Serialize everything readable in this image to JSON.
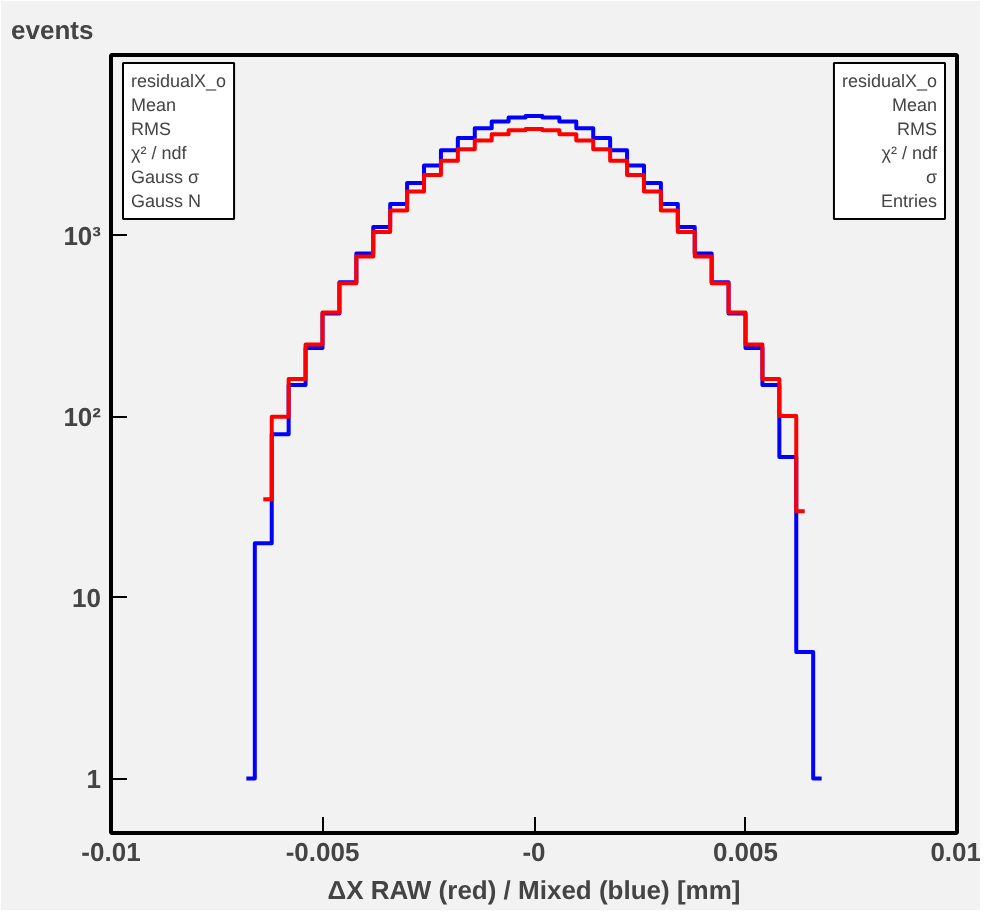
{
  "chart_data": {
    "type": "step",
    "xlabel": "ΔX RAW (red) / Mixed (blue) [mm]",
    "ylabel": "events",
    "x": [
      -0.0068,
      -0.0064,
      -0.006,
      -0.0056,
      -0.0052,
      -0.0048,
      -0.0044,
      -0.004,
      -0.0036,
      -0.0032,
      -0.0028,
      -0.0024,
      -0.002,
      -0.0016,
      -0.0012,
      -0.0008,
      -0.0004,
      0,
      0.0004,
      0.0008,
      0.0012,
      0.0016,
      0.002,
      0.0024,
      0.0028,
      0.0032,
      0.0036,
      0.004,
      0.0044,
      0.0048,
      0.0052,
      0.0056,
      0.006,
      0.0064,
      0.0068
    ],
    "series": [
      {
        "color": "#0000ff",
        "values": [
          1,
          20,
          80,
          150,
          240,
          372,
          555,
          800,
          1120,
          1500,
          1960,
          2450,
          2970,
          3480,
          3930,
          4290,
          4520,
          4600,
          4520,
          4290,
          3930,
          3480,
          2970,
          2450,
          1960,
          1500,
          1120,
          800,
          555,
          372,
          240,
          150,
          60,
          5,
          1
        ]
      },
      {
        "color": "#ff0000",
        "values": [
          null,
          35,
          100,
          162,
          251,
          377,
          548,
          770,
          1050,
          1380,
          1760,
          2170,
          2600,
          3010,
          3370,
          3650,
          3840,
          3900,
          3840,
          3650,
          3370,
          3010,
          2600,
          2170,
          1760,
          1380,
          1050,
          770,
          548,
          377,
          251,
          162,
          101,
          30,
          null
        ]
      }
    ],
    "xlim": [
      -0.01,
      0.01
    ],
    "xticks": [
      -0.01,
      -0.005,
      {
        "value": 0,
        "label": "-0"
      },
      0.005,
      0.01
    ],
    "ylim": [
      0.5,
      10000
    ],
    "yticks": [
      1,
      10,
      {
        "value": 100,
        "label": "10²"
      },
      {
        "value": 1000,
        "label": "10³"
      }
    ],
    "log": true,
    "grid": false,
    "annotations": [
      "residualX_o\nMean\nRMS\nχ² / ndf\nGauss σ\nGauss N",
      "residualX_o\nMean\nRMS\nχ² / ndf\nσ\nEntries"
    ]
  }
}
